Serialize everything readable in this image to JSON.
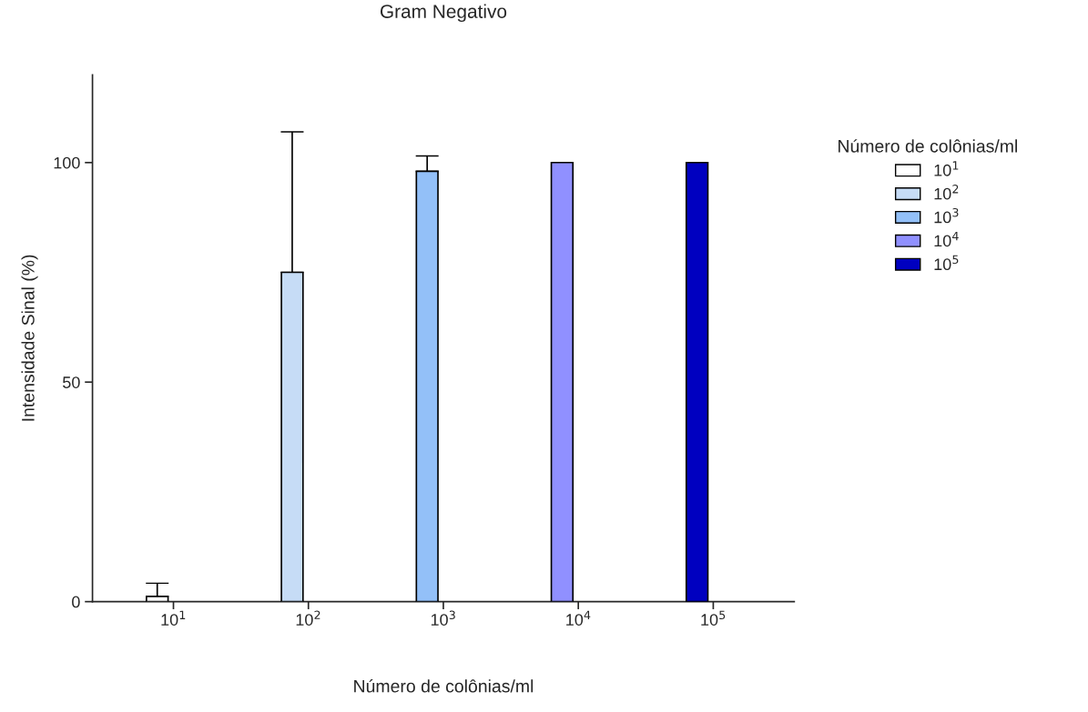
{
  "chart_data": {
    "type": "bar",
    "title": "Gram Negativo",
    "xlabel": "Número de colônias/ml",
    "ylabel": "Intensidade Sinal (%)",
    "legend_title": "Número de colônias/ml",
    "categories": [
      "10$^{1}$",
      "10$^{2}$",
      "10$^{3}$",
      "10$^{4}$",
      "10$^{5}$"
    ],
    "series": [
      {
        "name": "10$^{1}$",
        "color": "#ffffff",
        "values": [
          1.2,
          null,
          null,
          null,
          null
        ],
        "errors": [
          [
            1.2,
            4.2
          ],
          null,
          null,
          null,
          null
        ]
      },
      {
        "name": "10$^{2}$",
        "color": "#c6dcf6",
        "values": [
          null,
          75,
          null,
          null,
          null
        ],
        "errors": [
          null,
          [
            75,
            107
          ],
          null,
          null,
          null
        ]
      },
      {
        "name": "10$^{3}$",
        "color": "#93c0f8",
        "values": [
          null,
          null,
          98,
          null,
          null
        ],
        "errors": [
          null,
          null,
          [
            98,
            101.5
          ],
          null,
          null
        ]
      },
      {
        "name": "10$^{4}$",
        "color": "#9090ff",
        "values": [
          null,
          null,
          null,
          100,
          null
        ]
      },
      {
        "name": "10$^{5}$",
        "color": "#0000c0",
        "values": [
          null,
          null,
          null,
          null,
          100
        ]
      }
    ],
    "ylim": [
      0,
      120
    ],
    "yticks": [
      0,
      50,
      100
    ],
    "grid": false,
    "legend": "right"
  }
}
